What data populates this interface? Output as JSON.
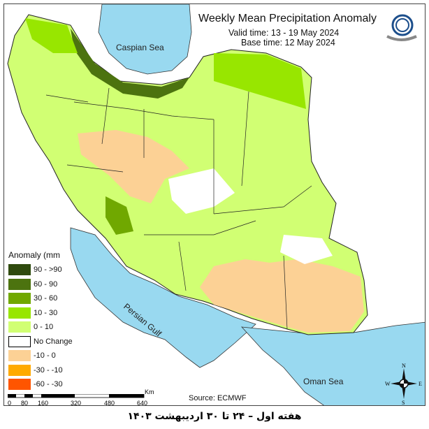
{
  "title": "Weekly Mean Precipitation Anomaly",
  "valid_time": "Valid time: 13 - 19 May 2024",
  "base_time": "Base time: 12 May 2024",
  "seas": {
    "caspian": "Caspian Sea",
    "persian_gulf": "Persian Gulf",
    "oman": "Oman Sea"
  },
  "legend": {
    "title": "Anomaly (mm",
    "items": [
      {
        "label": "90 - >90",
        "color": "#2f4a0e"
      },
      {
        "label": "60 - 90",
        "color": "#4c730f"
      },
      {
        "label": "30 - 60",
        "color": "#70a800"
      },
      {
        "label": "10 - 30",
        "color": "#98e600"
      },
      {
        "label": "0 - 10",
        "color": "#d1ff73"
      },
      {
        "label": "No Change",
        "color": "#ffffff"
      },
      {
        "label": "-10 - 0",
        "color": "#fcd195"
      },
      {
        "label": "-30 - -10",
        "color": "#ffaa00"
      },
      {
        "label": "-60 - -30",
        "color": "#ff5500"
      }
    ]
  },
  "scale": {
    "ticks": [
      "0",
      "80",
      "160",
      "320",
      "480",
      "640"
    ],
    "unit": "Km"
  },
  "source": "Source: ECMWF",
  "compass": {
    "n": "N",
    "s": "S",
    "e": "E",
    "w": "W"
  },
  "caption": "هفته اول – ۲۴ تا ۳۰ اردیبهشت ۱۴۰۳"
}
